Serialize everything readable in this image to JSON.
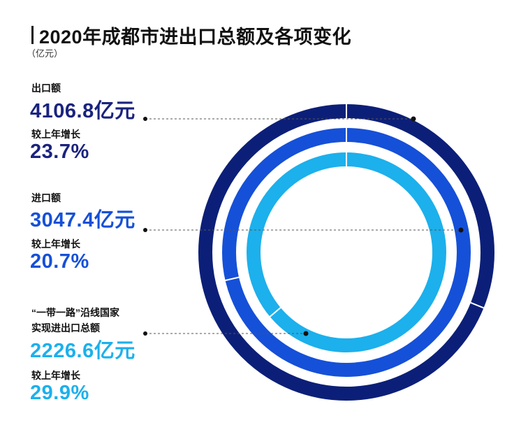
{
  "colors": {
    "outer": "#0c1f78",
    "middle": "#1550d8",
    "inner": "#1cb0ec",
    "val_dark": "#1a237e",
    "val_mid": "#1550d8",
    "val_light": "#1cb0ec"
  },
  "chart_data": {
    "type": "donut",
    "title": "2020年成都市进出口总额及各项变化",
    "unit": "（亿元）",
    "series": [
      {
        "name": "出口额",
        "value": 4106.8,
        "value_text": "4106.8亿元",
        "growth_label": "较上年增长",
        "growth": "23.7%"
      },
      {
        "name": "进口额",
        "value": 3047.4,
        "value_text": "3047.4亿元",
        "growth_label": "较上年增长",
        "growth": "20.7%"
      },
      {
        "name_line1": "“一带一路”沿线国家",
        "name_line2": "实现进出口总额",
        "value": 2226.6,
        "value_text": "2226.6亿元",
        "growth_label": "较上年增长",
        "growth": "29.9%"
      }
    ]
  }
}
